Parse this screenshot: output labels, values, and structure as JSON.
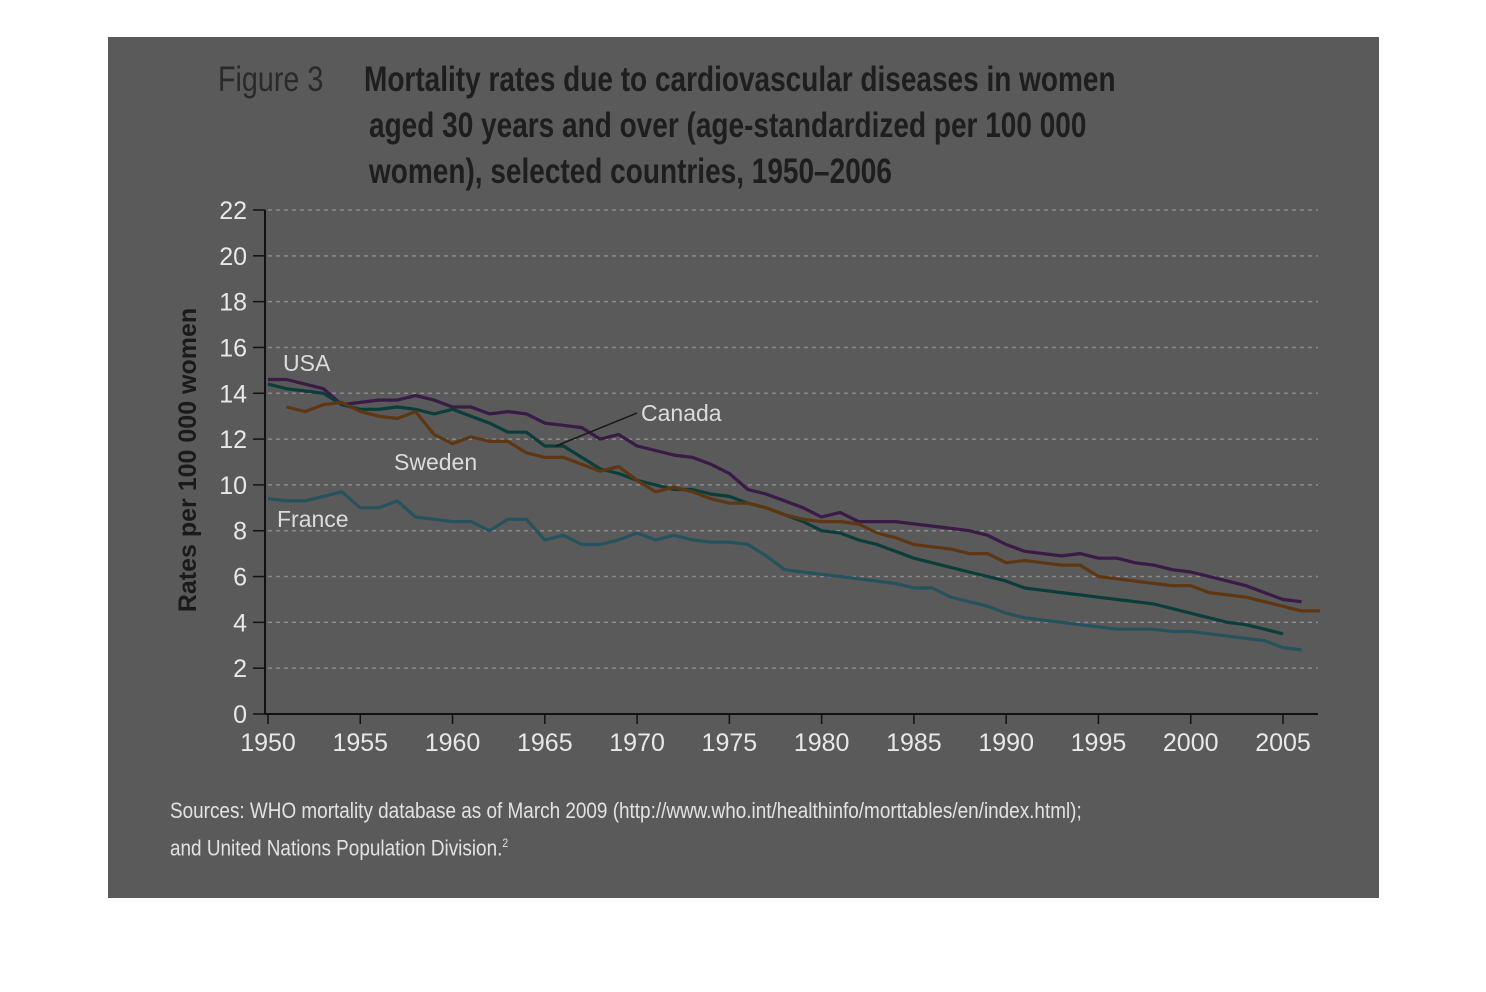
{
  "figure": {
    "label": "Figure 3",
    "title_lines": [
      "Mortality rates due to cardiovascular diseases in women",
      "aged 30 years and over (age-standardized per 100 000",
      "women), selected countries, 1950–2006"
    ]
  },
  "source": {
    "line1": "Sources: WHO mortality database as of March 2009 (http://www.who.int/healthinfo/morttables/en/index.html);",
    "line2": "and United Nations Population Division.",
    "footnote": "2"
  },
  "chart_data": {
    "type": "line",
    "title": "Mortality rates due to cardiovascular diseases in women aged 30 years and over (age-standardized per 100 000 women), selected countries, 1950–2006",
    "xlabel": "",
    "ylabel": "Rates per 100 000 women",
    "xlim": [
      1950,
      2007
    ],
    "ylim": [
      0,
      22
    ],
    "x_ticks": [
      "1950",
      "1955",
      "1960",
      "1965",
      "1970",
      "1975",
      "1980",
      "1985",
      "1990",
      "1995",
      "2000",
      "2005"
    ],
    "y_ticks": [
      "0",
      "2",
      "4",
      "6",
      "8",
      "10",
      "12",
      "14",
      "16",
      "18",
      "20",
      "22"
    ],
    "grid": "horizontal dashed",
    "series": [
      {
        "name": "USA",
        "color": "#3a1a46",
        "points": [
          [
            1950,
            14.6
          ],
          [
            1951,
            14.6
          ],
          [
            1952,
            14.4
          ],
          [
            1953,
            14.2
          ],
          [
            1954,
            13.5
          ],
          [
            1955,
            13.6
          ],
          [
            1956,
            13.7
          ],
          [
            1957,
            13.7
          ],
          [
            1958,
            13.9
          ],
          [
            1959,
            13.7
          ],
          [
            1960,
            13.4
          ],
          [
            1961,
            13.4
          ],
          [
            1962,
            13.1
          ],
          [
            1963,
            13.2
          ],
          [
            1964,
            13.1
          ],
          [
            1965,
            12.7
          ],
          [
            1966,
            12.6
          ],
          [
            1967,
            12.5
          ],
          [
            1968,
            12.0
          ],
          [
            1969,
            12.2
          ],
          [
            1970,
            11.7
          ],
          [
            1971,
            11.5
          ],
          [
            1972,
            11.3
          ],
          [
            1973,
            11.2
          ],
          [
            1974,
            10.9
          ],
          [
            1975,
            10.5
          ],
          [
            1976,
            9.8
          ],
          [
            1977,
            9.6
          ],
          [
            1978,
            9.3
          ],
          [
            1979,
            9.0
          ],
          [
            1980,
            8.6
          ],
          [
            1981,
            8.8
          ],
          [
            1982,
            8.4
          ],
          [
            1983,
            8.4
          ],
          [
            1984,
            8.4
          ],
          [
            1985,
            8.3
          ],
          [
            1986,
            8.2
          ],
          [
            1987,
            8.1
          ],
          [
            1988,
            8.0
          ],
          [
            1989,
            7.8
          ],
          [
            1990,
            7.4
          ],
          [
            1991,
            7.1
          ],
          [
            1992,
            7.0
          ],
          [
            1993,
            6.9
          ],
          [
            1994,
            7.0
          ],
          [
            1995,
            6.8
          ],
          [
            1996,
            6.8
          ],
          [
            1997,
            6.6
          ],
          [
            1998,
            6.5
          ],
          [
            1999,
            6.3
          ],
          [
            2000,
            6.2
          ],
          [
            2001,
            6.0
          ],
          [
            2002,
            5.8
          ],
          [
            2003,
            5.6
          ],
          [
            2004,
            5.3
          ],
          [
            2005,
            5.0
          ],
          [
            2006,
            4.9
          ]
        ]
      },
      {
        "name": "Canada",
        "color": "#0b3e3a",
        "points": [
          [
            1950,
            14.4
          ],
          [
            1951,
            14.2
          ],
          [
            1952,
            14.1
          ],
          [
            1953,
            14.0
          ],
          [
            1954,
            13.5
          ],
          [
            1955,
            13.3
          ],
          [
            1956,
            13.3
          ],
          [
            1957,
            13.4
          ],
          [
            1958,
            13.3
          ],
          [
            1959,
            13.1
          ],
          [
            1960,
            13.3
          ],
          [
            1961,
            13.0
          ],
          [
            1962,
            12.7
          ],
          [
            1963,
            12.3
          ],
          [
            1964,
            12.3
          ],
          [
            1965,
            11.7
          ],
          [
            1966,
            11.7
          ],
          [
            1967,
            11.2
          ],
          [
            1968,
            10.7
          ],
          [
            1969,
            10.5
          ],
          [
            1970,
            10.2
          ],
          [
            1971,
            10.0
          ],
          [
            1972,
            9.8
          ],
          [
            1973,
            9.8
          ],
          [
            1974,
            9.6
          ],
          [
            1975,
            9.5
          ],
          [
            1976,
            9.2
          ],
          [
            1977,
            9.0
          ],
          [
            1978,
            8.7
          ],
          [
            1979,
            8.4
          ],
          [
            1980,
            8.0
          ],
          [
            1981,
            7.9
          ],
          [
            1982,
            7.6
          ],
          [
            1983,
            7.4
          ],
          [
            1984,
            7.1
          ],
          [
            1985,
            6.8
          ],
          [
            1986,
            6.6
          ],
          [
            1987,
            6.4
          ],
          [
            1988,
            6.2
          ],
          [
            1989,
            6.0
          ],
          [
            1990,
            5.8
          ],
          [
            1991,
            5.5
          ],
          [
            1992,
            5.4
          ],
          [
            1993,
            5.3
          ],
          [
            1994,
            5.2
          ],
          [
            1995,
            5.1
          ],
          [
            1996,
            5.0
          ],
          [
            1997,
            4.9
          ],
          [
            1998,
            4.8
          ],
          [
            1999,
            4.6
          ],
          [
            2000,
            4.4
          ],
          [
            2001,
            4.2
          ],
          [
            2002,
            4.0
          ],
          [
            2003,
            3.9
          ],
          [
            2004,
            3.7
          ],
          [
            2005,
            3.5
          ]
        ]
      },
      {
        "name": "Sweden",
        "color": "#5e3712",
        "points": [
          [
            1951,
            13.4
          ],
          [
            1952,
            13.2
          ],
          [
            1953,
            13.5
          ],
          [
            1954,
            13.6
          ],
          [
            1955,
            13.2
          ],
          [
            1956,
            13.0
          ],
          [
            1957,
            12.9
          ],
          [
            1958,
            13.2
          ],
          [
            1959,
            12.2
          ],
          [
            1960,
            11.8
          ],
          [
            1961,
            12.1
          ],
          [
            1962,
            11.9
          ],
          [
            1963,
            11.9
          ],
          [
            1964,
            11.4
          ],
          [
            1965,
            11.2
          ],
          [
            1966,
            11.2
          ],
          [
            1967,
            10.9
          ],
          [
            1968,
            10.6
          ],
          [
            1969,
            10.8
          ],
          [
            1970,
            10.2
          ],
          [
            1971,
            9.7
          ],
          [
            1972,
            9.9
          ],
          [
            1973,
            9.7
          ],
          [
            1974,
            9.4
          ],
          [
            1975,
            9.2
          ],
          [
            1976,
            9.2
          ],
          [
            1977,
            9.0
          ],
          [
            1978,
            8.7
          ],
          [
            1979,
            8.5
          ],
          [
            1980,
            8.4
          ],
          [
            1981,
            8.4
          ],
          [
            1982,
            8.3
          ],
          [
            1983,
            7.9
          ],
          [
            1984,
            7.7
          ],
          [
            1985,
            7.4
          ],
          [
            1986,
            7.3
          ],
          [
            1987,
            7.2
          ],
          [
            1988,
            7.0
          ],
          [
            1989,
            7.0
          ],
          [
            1990,
            6.6
          ],
          [
            1991,
            6.7
          ],
          [
            1992,
            6.6
          ],
          [
            1993,
            6.5
          ],
          [
            1994,
            6.5
          ],
          [
            1995,
            6.0
          ],
          [
            1996,
            5.9
          ],
          [
            1997,
            5.8
          ],
          [
            1998,
            5.7
          ],
          [
            1999,
            5.6
          ],
          [
            2000,
            5.6
          ],
          [
            2001,
            5.3
          ],
          [
            2002,
            5.2
          ],
          [
            2003,
            5.1
          ],
          [
            2004,
            4.9
          ],
          [
            2005,
            4.7
          ],
          [
            2006,
            4.5
          ],
          [
            2007,
            4.5
          ]
        ]
      },
      {
        "name": "France",
        "color": "#26525e",
        "points": [
          [
            1950,
            9.4
          ],
          [
            1951,
            9.3
          ],
          [
            1952,
            9.3
          ],
          [
            1953,
            9.5
          ],
          [
            1954,
            9.7
          ],
          [
            1955,
            9.0
          ],
          [
            1956,
            9.0
          ],
          [
            1957,
            9.3
          ],
          [
            1958,
            8.6
          ],
          [
            1959,
            8.5
          ],
          [
            1960,
            8.4
          ],
          [
            1961,
            8.4
          ],
          [
            1962,
            8.0
          ],
          [
            1963,
            8.5
          ],
          [
            1964,
            8.5
          ],
          [
            1965,
            7.6
          ],
          [
            1966,
            7.8
          ],
          [
            1967,
            7.4
          ],
          [
            1968,
            7.4
          ],
          [
            1969,
            7.6
          ],
          [
            1970,
            7.9
          ],
          [
            1971,
            7.6
          ],
          [
            1972,
            7.8
          ],
          [
            1973,
            7.6
          ],
          [
            1974,
            7.5
          ],
          [
            1975,
            7.5
          ],
          [
            1976,
            7.4
          ],
          [
            1977,
            6.9
          ],
          [
            1978,
            6.3
          ],
          [
            1979,
            6.2
          ],
          [
            1980,
            6.1
          ],
          [
            1981,
            6.0
          ],
          [
            1982,
            5.9
          ],
          [
            1983,
            5.8
          ],
          [
            1984,
            5.7
          ],
          [
            1985,
            5.5
          ],
          [
            1986,
            5.5
          ],
          [
            1987,
            5.1
          ],
          [
            1988,
            4.9
          ],
          [
            1989,
            4.7
          ],
          [
            1990,
            4.4
          ],
          [
            1991,
            4.2
          ],
          [
            1992,
            4.1
          ],
          [
            1993,
            4.0
          ],
          [
            1994,
            3.9
          ],
          [
            1995,
            3.8
          ],
          [
            1996,
            3.7
          ],
          [
            1997,
            3.7
          ],
          [
            1998,
            3.7
          ],
          [
            1999,
            3.6
          ],
          [
            2000,
            3.6
          ],
          [
            2001,
            3.5
          ],
          [
            2002,
            3.4
          ],
          [
            2003,
            3.3
          ],
          [
            2004,
            3.2
          ],
          [
            2005,
            2.9
          ],
          [
            2006,
            2.8
          ]
        ]
      }
    ]
  }
}
